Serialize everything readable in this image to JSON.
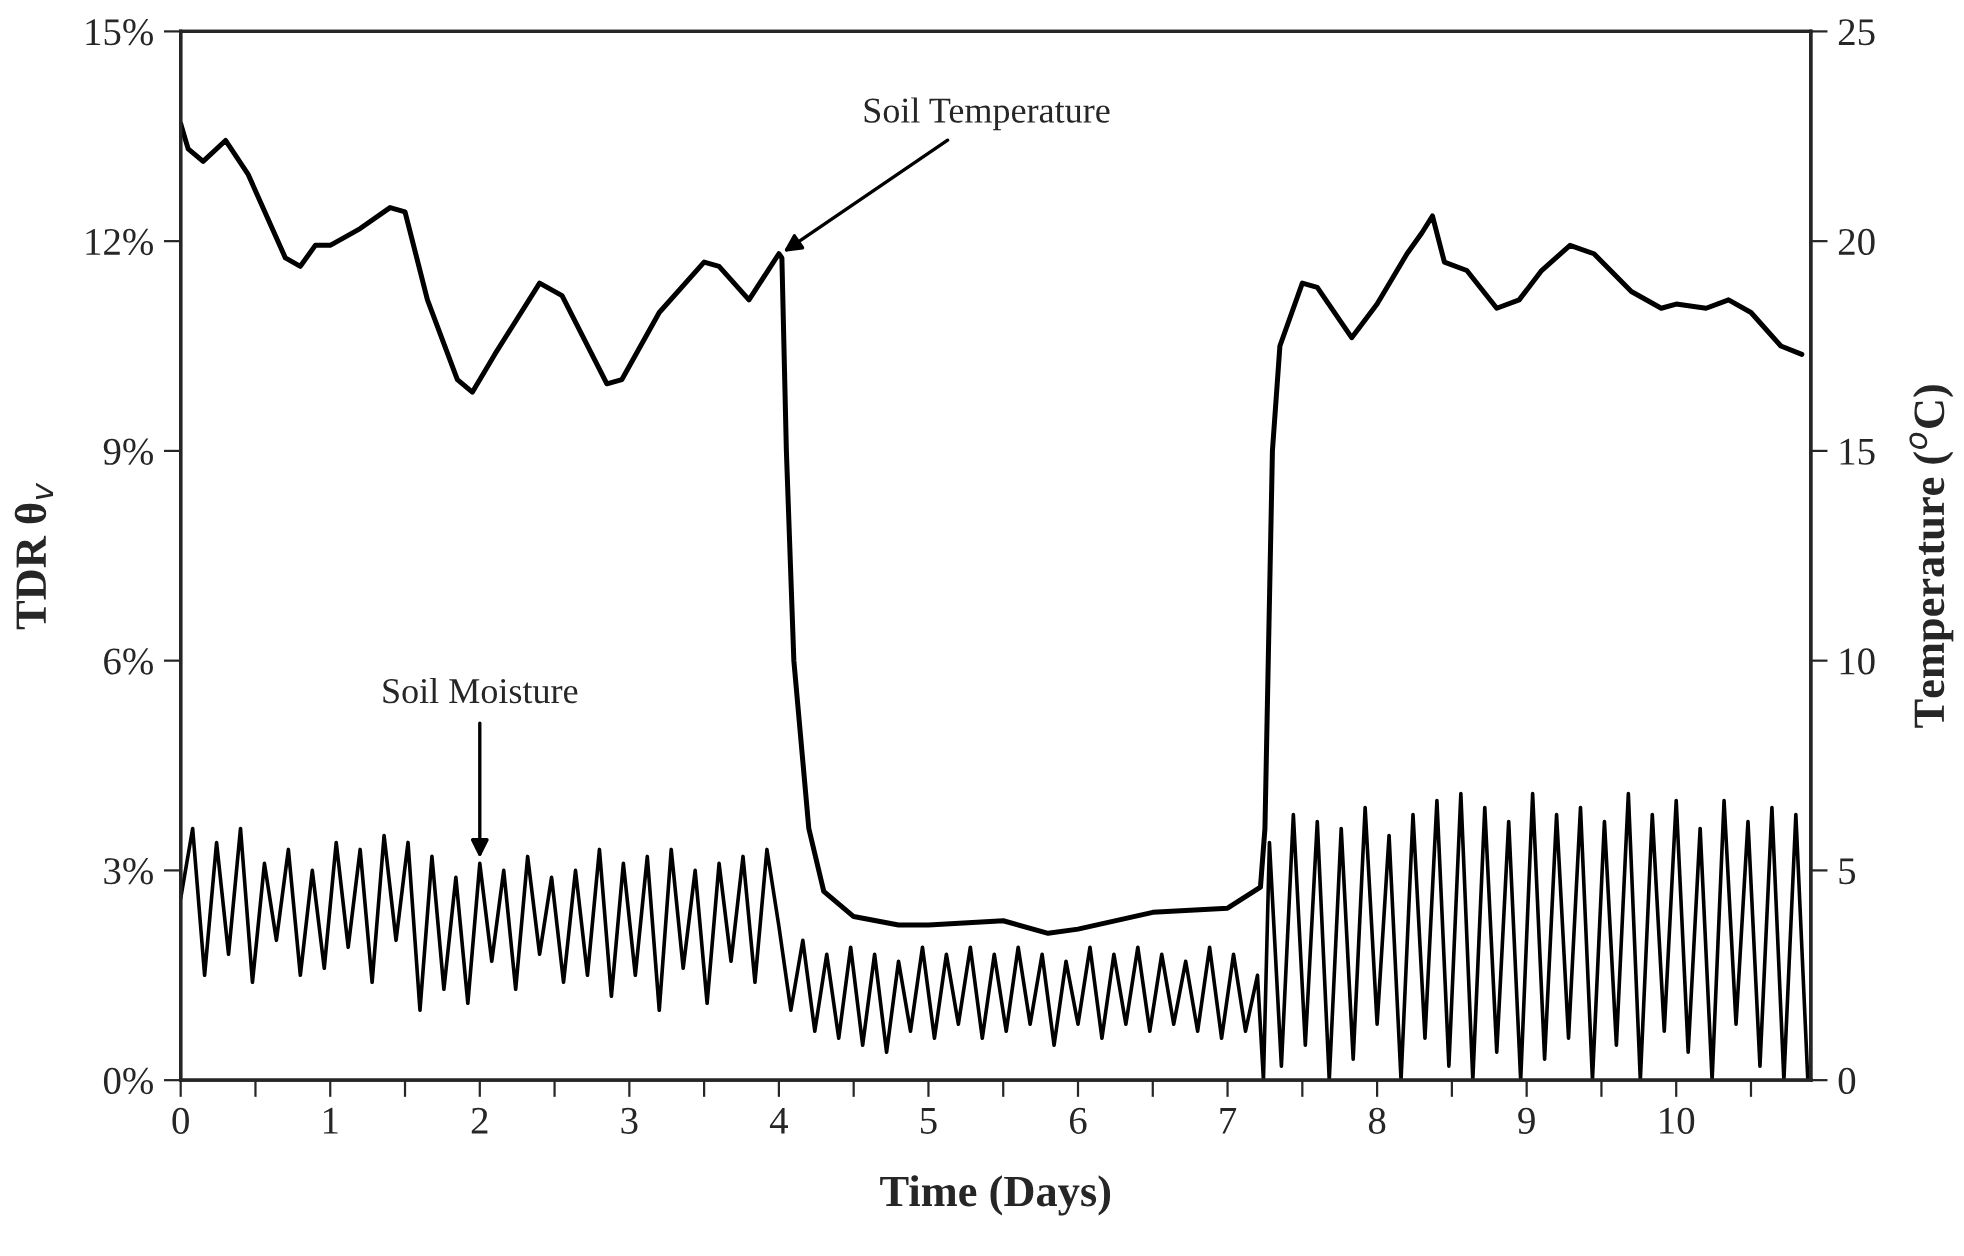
{
  "chart_data": {
    "type": "line",
    "xlabel": "Time (Days)",
    "ylabel": "TDR θ$_{v}$",
    "y2label": "Temperature ($^{o}$C)",
    "xlim": [
      0,
      10.9
    ],
    "xticks": [
      0,
      {
        "value": 0.5,
        "label": null
      },
      1,
      {
        "value": 1.5,
        "label": null
      },
      2,
      {
        "value": 2.5,
        "label": null
      },
      3,
      {
        "value": 3.5,
        "label": null
      },
      4,
      {
        "value": 4.5,
        "label": null
      },
      5,
      {
        "value": 5.5,
        "label": null
      },
      6,
      {
        "value": 6.5,
        "label": null
      },
      7,
      {
        "value": 7.5,
        "label": null
      },
      8,
      {
        "value": 8.5,
        "label": null
      },
      9,
      {
        "value": 9.5,
        "label": null
      },
      10,
      {
        "value": 10.5,
        "label": null
      }
    ],
    "ylim": [
      0,
      15
    ],
    "yticks": [
      {
        "value": 0,
        "label": "0%"
      },
      {
        "value": 3,
        "label": "3%"
      },
      {
        "value": 6,
        "label": "6%"
      },
      {
        "value": 9,
        "label": "9%"
      },
      {
        "value": 12,
        "label": "12%"
      },
      {
        "value": 15,
        "label": "15%"
      }
    ],
    "y2lim": [
      0,
      25
    ],
    "y2ticks": [
      0,
      5,
      10,
      15,
      20,
      25
    ],
    "grid": false,
    "legend": false,
    "line_style": "solid",
    "series": [
      {
        "color": "#000000",
        "x": [
          0,
          0.08,
          0.16,
          0.24,
          0.32,
          0.4,
          0.48,
          0.56,
          0.64,
          0.72,
          0.8,
          0.88,
          0.96,
          1.04,
          1.12,
          1.2,
          1.28,
          1.36,
          1.44,
          1.52,
          1.6,
          1.68,
          1.76,
          1.84,
          1.92,
          2.0,
          2.08,
          2.16,
          2.24,
          2.32,
          2.4,
          2.48,
          2.56,
          2.64,
          2.72,
          2.8,
          2.88,
          2.96,
          3.04,
          3.12,
          3.2,
          3.28,
          3.36,
          3.44,
          3.52,
          3.6,
          3.68,
          3.76,
          3.84,
          3.92,
          4.0,
          4.08,
          4.16,
          4.24,
          4.32,
          4.4,
          4.48,
          4.56,
          4.64,
          4.72,
          4.8,
          4.88,
          4.96,
          5.04,
          5.12,
          5.2,
          5.28,
          5.36,
          5.44,
          5.52,
          5.6,
          5.68,
          5.76,
          5.84,
          5.92,
          6.0,
          6.08,
          6.16,
          6.24,
          6.32,
          6.4,
          6.48,
          6.56,
          6.64,
          6.72,
          6.8,
          6.88,
          6.96,
          7.04,
          7.12,
          7.2,
          7.24,
          7.28,
          7.36,
          7.44,
          7.52,
          7.6,
          7.68,
          7.76,
          7.84,
          7.92,
          8.0,
          8.08,
          8.16,
          8.24,
          8.32,
          8.4,
          8.48,
          8.56,
          8.64,
          8.72,
          8.8,
          8.88,
          8.96,
          9.04,
          9.12,
          9.2,
          9.28,
          9.36,
          9.44,
          9.52,
          9.6,
          9.68,
          9.76,
          9.84,
          9.92,
          10.0,
          10.08,
          10.16,
          10.24,
          10.32,
          10.4,
          10.48,
          10.56,
          10.64,
          10.72,
          10.8,
          10.88
        ],
        "values": [
          2.6,
          3.6,
          1.5,
          3.4,
          1.8,
          3.6,
          1.4,
          3.1,
          2.0,
          3.3,
          1.5,
          3.0,
          1.6,
          3.4,
          1.9,
          3.3,
          1.4,
          3.5,
          2.0,
          3.4,
          1.0,
          3.2,
          1.3,
          2.9,
          1.1,
          3.1,
          1.7,
          3.0,
          1.3,
          3.2,
          1.8,
          2.9,
          1.4,
          3.0,
          1.5,
          3.3,
          1.2,
          3.1,
          1.5,
          3.2,
          1.0,
          3.3,
          1.6,
          3.0,
          1.1,
          3.1,
          1.7,
          3.2,
          1.4,
          3.3,
          2.2,
          1.0,
          2.0,
          0.7,
          1.8,
          0.6,
          1.9,
          0.5,
          1.8,
          0.4,
          1.7,
          0.7,
          1.9,
          0.6,
          1.8,
          0.8,
          1.9,
          0.6,
          1.8,
          0.7,
          1.9,
          0.8,
          1.8,
          0.5,
          1.7,
          0.8,
          1.9,
          0.6,
          1.8,
          0.8,
          1.9,
          0.7,
          1.8,
          0.8,
          1.7,
          0.7,
          1.9,
          0.6,
          1.8,
          0.7,
          1.5,
          0.0,
          3.4,
          0.2,
          3.8,
          0.5,
          3.7,
          0.0,
          3.6,
          0.3,
          3.9,
          0.8,
          3.5,
          0.0,
          3.8,
          0.6,
          4.0,
          0.2,
          4.1,
          0.0,
          3.9,
          0.4,
          3.7,
          0.0,
          4.1,
          0.3,
          3.8,
          0.6,
          3.9,
          0.0,
          3.7,
          0.5,
          4.1,
          0.0,
          3.8,
          0.7,
          4.0,
          0.4,
          3.6,
          0.0,
          4.0,
          0.8,
          3.7,
          0.2,
          3.9,
          0.0,
          3.8,
          0.0
        ]
      },
      {
        "color": "#000000",
        "axis": "y2",
        "x": [
          0,
          0.05,
          0.15,
          0.3,
          0.45,
          0.7,
          0.8,
          0.9,
          1.0,
          1.2,
          1.4,
          1.5,
          1.65,
          1.85,
          1.95,
          2.1,
          2.4,
          2.55,
          2.85,
          2.95,
          3.2,
          3.5,
          3.6,
          3.8,
          4.0,
          4.02,
          4.05,
          4.1,
          4.2,
          4.3,
          4.5,
          4.8,
          5.0,
          5.5,
          5.8,
          6.0,
          6.5,
          7.0,
          7.22,
          7.25,
          7.3,
          7.35,
          7.5,
          7.6,
          7.83,
          8.0,
          8.2,
          8.3,
          8.37,
          8.45,
          8.6,
          8.8,
          8.95,
          9.1,
          9.29,
          9.45,
          9.7,
          9.9,
          10.0,
          10.2,
          10.35,
          10.5,
          10.7,
          10.84
        ],
        "values": [
          22.8,
          22.2,
          21.9,
          22.4,
          21.6,
          19.6,
          19.4,
          19.9,
          19.9,
          20.3,
          20.8,
          20.7,
          18.6,
          16.7,
          16.4,
          17.3,
          19.0,
          18.7,
          16.6,
          16.7,
          18.3,
          19.5,
          19.4,
          18.6,
          19.7,
          19.6,
          15,
          10,
          6,
          4.5,
          3.9,
          3.7,
          3.7,
          3.8,
          3.5,
          3.6,
          4.0,
          4.1,
          4.6,
          6,
          15,
          17.5,
          19.0,
          18.9,
          17.7,
          18.5,
          19.7,
          20.2,
          20.6,
          19.5,
          19.3,
          18.4,
          18.6,
          19.3,
          19.9,
          19.7,
          18.8,
          18.4,
          18.5,
          18.4,
          18.6,
          18.3,
          17.5,
          17.3
        ]
      }
    ],
    "annotations": [
      {
        "text": "Soil Temperature",
        "x": 4.0,
        "y": 11.8
      },
      {
        "text": "Soil Moisture",
        "x": 2.0,
        "y": 3.1
      }
    ]
  }
}
